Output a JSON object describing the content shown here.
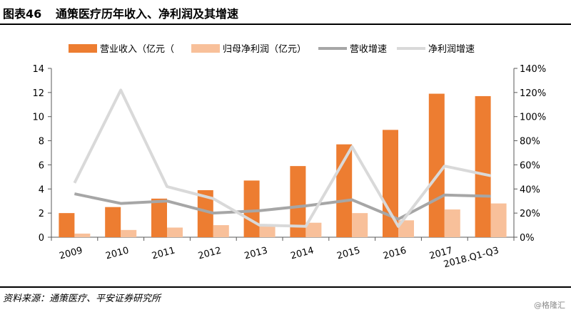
{
  "figure": {
    "label": "图表46",
    "title": "通策医疗历年收入、净利润及其增速",
    "source": "资料来源：通策医疗、平安证券研究所",
    "watermark": "@格隆汇"
  },
  "colors": {
    "revenue": "#ED7D31",
    "net_profit": "#F8C09A",
    "revenue_growth": "#A6A6A6",
    "profit_growth": "#D9D9D9"
  },
  "chart_data": {
    "type": "bar",
    "categories": [
      "2009",
      "2010",
      "2011",
      "2012",
      "2013",
      "2014",
      "2015",
      "2016",
      "2017",
      "2018.Q1-Q3"
    ],
    "series": [
      {
        "name": "营业收入（亿元（",
        "kind": "bar",
        "axis": "left",
        "values": [
          2.0,
          2.5,
          3.2,
          3.9,
          4.7,
          5.9,
          7.7,
          8.9,
          11.9,
          11.7
        ]
      },
      {
        "name": "归母净利润（亿元）",
        "kind": "bar",
        "axis": "left",
        "values": [
          0.3,
          0.6,
          0.8,
          1.0,
          1.0,
          1.2,
          2.0,
          1.4,
          2.3,
          2.8
        ]
      },
      {
        "name": "营收增速",
        "kind": "line",
        "axis": "right",
        "values": [
          0.36,
          0.28,
          0.3,
          0.2,
          0.22,
          0.26,
          0.31,
          0.15,
          0.35,
          0.34
        ]
      },
      {
        "name": "净利润增速",
        "kind": "line",
        "axis": "right",
        "values": [
          0.45,
          1.22,
          0.42,
          0.32,
          0.1,
          0.09,
          0.75,
          0.09,
          0.59,
          0.51
        ]
      }
    ],
    "y_left": {
      "min": 0,
      "max": 14,
      "ticks": [
        "0",
        "2",
        "4",
        "6",
        "8",
        "10",
        "12",
        "14"
      ]
    },
    "y_right": {
      "min": 0,
      "max": 1.4,
      "ticks": [
        "0%",
        "20%",
        "40%",
        "60%",
        "80%",
        "100%",
        "120%",
        "140%"
      ]
    },
    "grid": false,
    "legend_position": "top"
  }
}
